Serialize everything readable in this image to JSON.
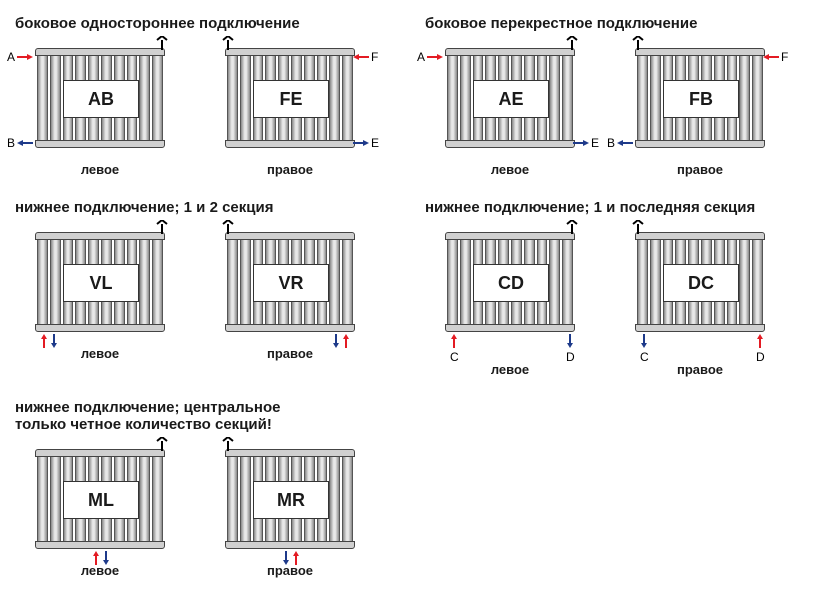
{
  "colors": {
    "red": "#e31b23",
    "blue": "#1e3a8a",
    "black": "#000000",
    "tube_light": "#e8e8e8",
    "tube_dark": "#888888",
    "border": "#444444",
    "bg": "#ffffff"
  },
  "tubes_per_radiator": 10,
  "groups": [
    {
      "title": "боковое одностороннее подключение",
      "radiators": [
        {
          "code": "AB",
          "caption": "левое",
          "valve": "top-right",
          "side_arrows": [
            {
              "pos": "tl",
              "label": "A",
              "dir": "right",
              "color": "red"
            },
            {
              "pos": "bl",
              "label": "B",
              "dir": "left",
              "color": "blue"
            }
          ]
        },
        {
          "code": "FE",
          "caption": "правое",
          "valve": "top-left",
          "side_arrows": [
            {
              "pos": "tr",
              "label": "F",
              "dir": "left",
              "color": "red"
            },
            {
              "pos": "br",
              "label": "E",
              "dir": "right",
              "color": "blue"
            }
          ]
        }
      ]
    },
    {
      "title": "боковое перекрестное подключение",
      "radiators": [
        {
          "code": "AE",
          "caption": "левое",
          "valve": "top-right",
          "side_arrows": [
            {
              "pos": "tl",
              "label": "A",
              "dir": "right",
              "color": "red"
            },
            {
              "pos": "br",
              "label": "E",
              "dir": "right",
              "color": "blue"
            }
          ]
        },
        {
          "code": "FB",
          "caption": "правое",
          "valve": "top-left",
          "side_arrows": [
            {
              "pos": "tr",
              "label": "F",
              "dir": "left",
              "color": "red"
            },
            {
              "pos": "bl",
              "label": "B",
              "dir": "left",
              "color": "blue"
            }
          ]
        }
      ]
    },
    {
      "title": "нижнее подключение; 1 и 2 секция",
      "radiators": [
        {
          "code": "VL",
          "caption": "левое",
          "valve": "top-right",
          "bottom_arrows": {
            "pos": "left",
            "order": [
              "red-up",
              "blue-down"
            ]
          }
        },
        {
          "code": "VR",
          "caption": "правое",
          "valve": "top-left",
          "bottom_arrows": {
            "pos": "right",
            "order": [
              "blue-down",
              "red-up"
            ]
          }
        }
      ]
    },
    {
      "title": "нижнее подключение; 1 и последняя секция",
      "radiators": [
        {
          "code": "CD",
          "caption": "левое",
          "valve": "top-right",
          "bottom_pair": [
            {
              "side": "left",
              "label": "C",
              "dir": "up",
              "color": "red"
            },
            {
              "side": "right",
              "label": "D",
              "dir": "down",
              "color": "blue"
            }
          ]
        },
        {
          "code": "DC",
          "caption": "правое",
          "valve": "top-left",
          "bottom_pair": [
            {
              "side": "left",
              "label": "C",
              "dir": "down",
              "color": "blue"
            },
            {
              "side": "right",
              "label": "D",
              "dir": "up",
              "color": "red"
            }
          ]
        }
      ]
    },
    {
      "title": "нижнее подключение; центральное",
      "subtitle": "только четное количество секций!",
      "radiators": [
        {
          "code": "ML",
          "caption": "левое",
          "valve": "top-right",
          "bottom_arrows": {
            "pos": "center",
            "order": [
              "red-up",
              "blue-down"
            ]
          }
        },
        {
          "code": "MR",
          "caption": "правое",
          "valve": "top-left",
          "bottom_arrows": {
            "pos": "center",
            "order": [
              "blue-down",
              "red-up"
            ]
          }
        }
      ]
    }
  ]
}
